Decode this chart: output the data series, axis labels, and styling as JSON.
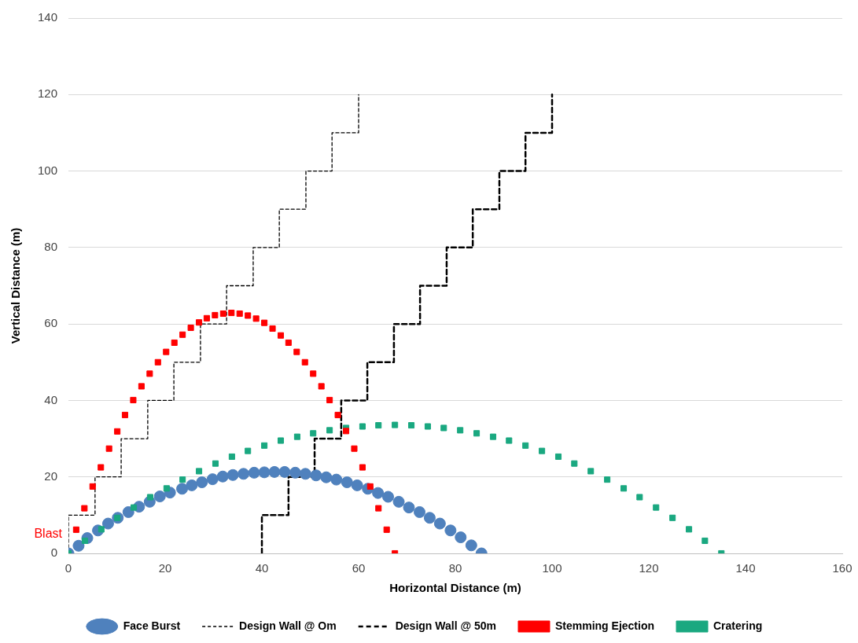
{
  "chart_data": {
    "type": "scatter",
    "xlabel": "Horizontal Distance (m)",
    "ylabel": "Vertical Distance (m)",
    "xlim": [
      0,
      160
    ],
    "xticks": [
      0,
      20,
      40,
      60,
      80,
      100,
      120,
      140,
      160
    ],
    "ylim": [
      0,
      140
    ],
    "yticks": [
      0,
      20,
      40,
      60,
      80,
      100,
      120,
      140
    ],
    "grid": "y",
    "legend": "bottom",
    "annotations": [
      {
        "text": "Blast",
        "x": 0,
        "y": 5
      }
    ],
    "series": [
      {
        "name": "Face Burst",
        "type": "scatter",
        "marker": "circle",
        "color": "#4f81bd",
        "x": [
          0,
          2.1,
          3.9,
          6.1,
          8.2,
          10.2,
          12.4,
          14.6,
          16.8,
          18.9,
          21.0,
          23.5,
          25.5,
          27.6,
          29.8,
          31.9,
          34.0,
          36.2,
          38.4,
          40.5,
          42.6,
          44.7,
          46.9,
          49.0,
          51.2,
          53.3,
          55.4,
          57.6,
          59.7,
          61.9,
          64.0,
          66.1,
          68.3,
          70.4,
          72.6,
          74.7,
          76.8,
          79.0,
          81.1,
          83.3,
          85.4
        ],
        "values": [
          0,
          2,
          4,
          6,
          7.8,
          9.3,
          10.8,
          12.2,
          13.5,
          14.9,
          15.9,
          16.9,
          17.8,
          18.6,
          19.4,
          20.1,
          20.5,
          20.8,
          21.1,
          21.2,
          21.3,
          21.3,
          21.1,
          20.8,
          20.4,
          19.9,
          19.3,
          18.6,
          17.8,
          16.9,
          15.8,
          14.8,
          13.5,
          12.0,
          10.8,
          9.3,
          7.8,
          6.0,
          4.2,
          2.1,
          0
        ]
      },
      {
        "name": "Design Wall @ Om",
        "type": "line",
        "line_style": "dashed",
        "marker": "none",
        "color": "#000000",
        "x": [
          0,
          0,
          5.5,
          5.5,
          10.9,
          10.9,
          16.4,
          16.4,
          21.8,
          21.8,
          27.3,
          27.3,
          32.7,
          32.7,
          38.2,
          38.2,
          43.6,
          43.6,
          49.1,
          49.1,
          54.5,
          54.5,
          60,
          60
        ],
        "values": [
          0,
          10,
          10,
          20,
          20,
          30,
          30,
          40,
          40,
          50,
          50,
          60,
          60,
          70,
          70,
          80,
          80,
          90,
          90,
          100,
          100,
          110,
          110,
          120
        ]
      },
      {
        "name": "Design Wall @ 50m",
        "type": "line",
        "line_style": "dashed",
        "marker": "none",
        "color": "#000000",
        "x": [
          40,
          40,
          45.5,
          45.5,
          50.9,
          50.9,
          56.4,
          56.4,
          61.8,
          61.8,
          67.3,
          67.3,
          72.7,
          72.7,
          78.2,
          78.2,
          83.6,
          83.6,
          89.1,
          89.1,
          94.5,
          94.5,
          100,
          100
        ],
        "values": [
          0,
          10,
          10,
          20,
          20,
          30,
          30,
          40,
          40,
          50,
          50,
          60,
          60,
          70,
          70,
          80,
          80,
          90,
          90,
          100,
          100,
          110,
          110,
          120
        ]
      },
      {
        "name": "Stemming Ejection",
        "type": "scatter",
        "marker": "square",
        "color": "#ff0000",
        "x": [
          1.6,
          3.3,
          5.0,
          6.7,
          8.4,
          10.1,
          11.7,
          13.4,
          15.1,
          16.8,
          18.5,
          20.2,
          21.9,
          23.6,
          25.3,
          27.0,
          28.6,
          30.3,
          32.0,
          33.7,
          35.4,
          37.1,
          38.8,
          40.5,
          42.2,
          43.9,
          45.5,
          47.2,
          48.9,
          50.6,
          52.3,
          54.0,
          55.7,
          57.4,
          59.1,
          60.8,
          62.4,
          64.1,
          65.8,
          67.5
        ],
        "values": [
          6.2,
          11.8,
          17.5,
          22.5,
          27.4,
          31.9,
          36.2,
          40.1,
          43.7,
          47.0,
          50.0,
          52.7,
          55.1,
          57.2,
          59.0,
          60.4,
          61.5,
          62.3,
          62.7,
          62.9,
          62.7,
          62.2,
          61.4,
          60.3,
          58.8,
          57.0,
          55.1,
          52.7,
          50.0,
          47.0,
          43.7,
          40.1,
          36.2,
          32.0,
          27.4,
          22.5,
          17.5,
          11.8,
          6.2,
          0
        ]
      },
      {
        "name": "Cratering",
        "type": "scatter",
        "marker": "square",
        "color": "#1aa880",
        "x": [
          0,
          3.4,
          6.8,
          10.1,
          13.5,
          16.9,
          20.3,
          23.6,
          27.0,
          30.4,
          33.8,
          37.1,
          40.5,
          43.9,
          47.3,
          50.6,
          54.0,
          57.4,
          60.8,
          64.1,
          67.5,
          70.9,
          74.3,
          77.6,
          81.0,
          84.4,
          87.8,
          91.1,
          94.5,
          97.9,
          101.3,
          104.6,
          108.0,
          111.4,
          114.8,
          118.1,
          121.5,
          124.9,
          128.3,
          131.6,
          135.0
        ],
        "values": [
          0,
          3.3,
          6.3,
          9.3,
          12.0,
          14.7,
          17.0,
          19.3,
          21.5,
          23.5,
          25.3,
          26.8,
          28.2,
          29.5,
          30.5,
          31.4,
          32.2,
          32.8,
          33.2,
          33.5,
          33.6,
          33.5,
          33.2,
          32.8,
          32.2,
          31.4,
          30.5,
          29.5,
          28.2,
          26.8,
          25.3,
          23.5,
          21.5,
          19.3,
          17.0,
          14.7,
          12.0,
          9.3,
          6.3,
          3.3,
          0
        ]
      }
    ]
  }
}
